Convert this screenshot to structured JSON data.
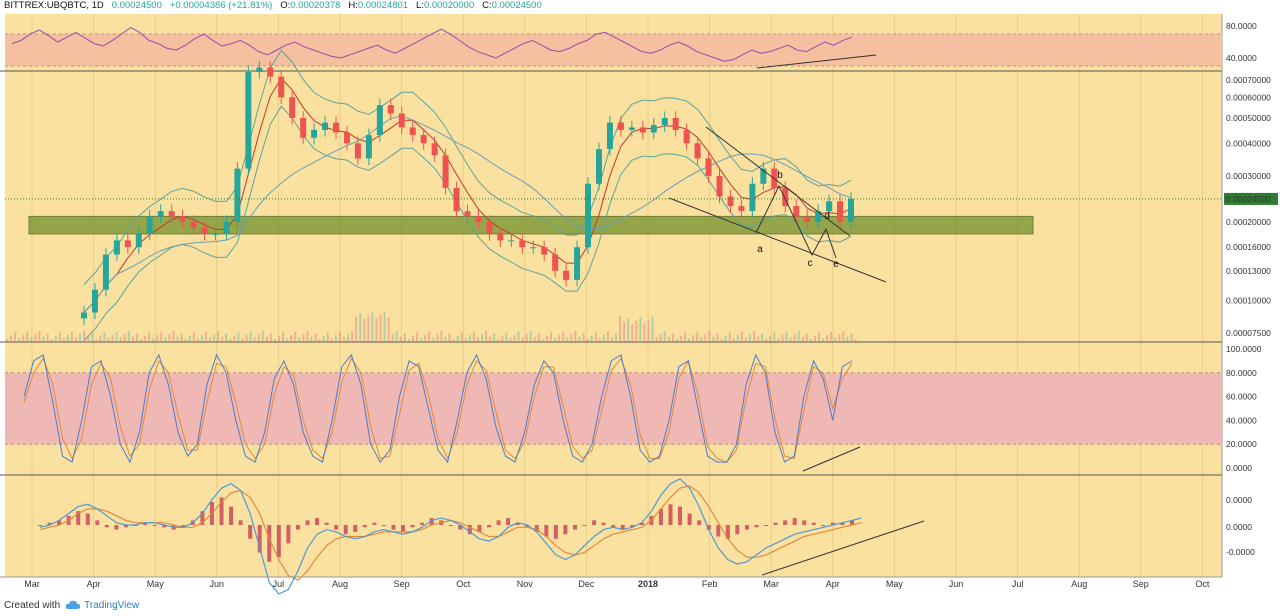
{
  "header": {
    "symbol": "BITTREX:UBQBTC, 1D",
    "close": "0.00024500",
    "change": "+0.00004386 (+21.81%)",
    "open_label": "O:",
    "open": "0.00020378",
    "high_label": "H:",
    "high": "0.00024801",
    "low_label": "L:",
    "low": "0.00020000",
    "close_label": "C:",
    "close2": "0.00024500"
  },
  "footer": {
    "created_with": "Created with",
    "brand": "TradingView"
  },
  "colors": {
    "background": "#fbe1a0",
    "up_candle": "#26a69a",
    "down_candle": "#ef5350",
    "rsi_band": "#f4c0a0",
    "stoch_band": "#efb8b4",
    "support_zone": "#6f8f2a",
    "price_tag": "#2e7d32"
  },
  "chart_data": [
    {
      "type": "line",
      "panel": "rsi",
      "yaxis_ticks": [
        "80.0000",
        "40.0000"
      ],
      "ylim": [
        25,
        95
      ],
      "band": [
        30,
        70
      ],
      "series": [
        {
          "values": [
            58,
            62,
            70,
            75,
            68,
            60,
            66,
            72,
            65,
            58,
            55,
            62,
            70,
            78,
            72,
            62,
            58,
            52,
            50,
            56,
            64,
            70,
            62,
            55,
            58,
            62,
            56,
            48,
            44,
            50,
            56,
            60,
            54,
            50,
            46,
            42,
            40,
            44,
            48,
            52,
            56,
            50,
            46,
            52,
            58,
            64,
            70,
            76,
            70,
            62,
            54,
            48,
            44,
            40,
            46,
            52,
            58,
            62,
            56,
            50,
            48,
            52,
            58,
            62,
            70,
            72,
            66,
            60,
            54,
            48,
            46,
            50,
            56,
            60,
            55,
            48,
            44,
            40,
            36,
            38,
            44,
            50,
            46,
            48,
            52,
            56,
            50,
            48,
            54,
            60,
            56,
            62,
            66
          ]
        }
      ],
      "trendline": [
        [
          58,
          0.0
        ],
        [
          92,
          1.0
        ]
      ]
    },
    {
      "type": "candlestick",
      "panel": "price",
      "x_tick_labels": [
        "Mar",
        "Apr",
        "May",
        "Jun",
        "Jul",
        "Aug",
        "Sep",
        "Oct",
        "Nov",
        "Dec",
        "2018",
        "Feb",
        "Mar",
        "Apr",
        "May",
        "Jun",
        "Jul",
        "Aug",
        "Sep",
        "Oct"
      ],
      "yaxis_ticks": [
        "0.00070000",
        "0.00060000",
        "0.00050000",
        "0.00040000",
        "0.00030000",
        "0.00020000",
        "0.00016000",
        "0.00013000",
        "0.00010000",
        "0.00007500"
      ],
      "y_scale": "log",
      "ylim": [
        7e-05,
        0.00075
      ],
      "last_price": "0.00024500",
      "close_series": [
        9e-05,
        0.00011,
        0.00015,
        0.00017,
        0.00016,
        0.00018,
        0.00021,
        0.00022,
        0.00021,
        0.0002,
        0.00019,
        0.00018,
        0.00018,
        0.0002,
        0.00032,
        0.00075,
        0.00078,
        0.00072,
        0.0006,
        0.0005,
        0.00042,
        0.00045,
        0.00048,
        0.00044,
        0.0004,
        0.00035,
        0.00043,
        0.00056,
        0.00052,
        0.00046,
        0.00043,
        0.0004,
        0.00036,
        0.00027,
        0.00022,
        0.00021,
        0.0002,
        0.00018,
        0.00017,
        0.00017,
        0.00016,
        0.00016,
        0.00015,
        0.00013,
        0.00012,
        0.00016,
        0.00028,
        0.00038,
        0.00048,
        0.00045,
        0.00046,
        0.00044,
        0.00047,
        0.0005,
        0.00045,
        0.0004,
        0.00035,
        0.0003,
        0.00025,
        0.00023,
        0.00022,
        0.00028,
        0.00032,
        0.00027,
        0.00023,
        0.00021,
        0.0002,
        0.00022,
        0.00024,
        0.0002,
        0.000245
      ],
      "support_zone": [
        0.00018,
        0.00021
      ],
      "wave_labels": [
        "a",
        "b",
        "c",
        "d",
        "e"
      ]
    },
    {
      "type": "line",
      "panel": "stoch_rsi",
      "yaxis_ticks": [
        "100.0000",
        "80.0000",
        "60.0000",
        "40.0000",
        "20.0000",
        "0.0000"
      ],
      "ylim": [
        -5,
        105
      ],
      "band": [
        20,
        80
      ],
      "series": [
        {
          "values": [
            60,
            90,
            95,
            55,
            10,
            5,
            40,
            85,
            90,
            60,
            20,
            5,
            30,
            80,
            95,
            70,
            30,
            10,
            20,
            70,
            95,
            80,
            40,
            10,
            5,
            30,
            75,
            90,
            70,
            30,
            10,
            5,
            40,
            85,
            95,
            70,
            20,
            5,
            15,
            60,
            90,
            85,
            50,
            15,
            5,
            40,
            80,
            95,
            75,
            35,
            10,
            5,
            30,
            70,
            90,
            80,
            40,
            10,
            5,
            20,
            60,
            90,
            95,
            60,
            15,
            5,
            10,
            40,
            85,
            90,
            50,
            10,
            5,
            5,
            20,
            70,
            95,
            80,
            30,
            5,
            10,
            60,
            90,
            75,
            40,
            85,
            90
          ]
        },
        {
          "values": [
            55,
            80,
            92,
            70,
            25,
            8,
            25,
            70,
            88,
            75,
            35,
            10,
            20,
            65,
            90,
            80,
            45,
            15,
            15,
            55,
            88,
            85,
            55,
            20,
            8,
            20,
            62,
            85,
            78,
            40,
            15,
            8,
            30,
            72,
            92,
            80,
            35,
            8,
            10,
            45,
            82,
            88,
            62,
            25,
            8,
            30,
            70,
            90,
            82,
            48,
            15,
            8,
            22,
            60,
            85,
            85,
            52,
            18,
            8,
            15,
            48,
            82,
            92,
            70,
            28,
            8,
            8,
            30,
            75,
            90,
            62,
            18,
            8,
            5,
            15,
            58,
            88,
            85,
            42,
            10,
            8,
            48,
            85,
            80,
            50,
            75,
            88
          ]
        }
      ],
      "trendline": [
        [
          0.62,
          8
        ],
        [
          0.67,
          22
        ]
      ]
    },
    {
      "type": "line",
      "panel": "macd",
      "yaxis_ticks": [
        "0.0000",
        "0.0000",
        "-0.0000"
      ],
      "histogram": [
        0,
        1,
        2,
        4,
        6,
        5,
        2,
        -1,
        -2,
        -1,
        0,
        1,
        0,
        -1,
        -2,
        -1,
        2,
        6,
        10,
        12,
        8,
        2,
        -6,
        -12,
        -16,
        -14,
        -8,
        -2,
        2,
        3,
        1,
        -2,
        -4,
        -3,
        -1,
        1,
        0,
        -2,
        -3,
        -1,
        1,
        3,
        2,
        0,
        -2,
        -4,
        -3,
        -1,
        2,
        3,
        1,
        -1,
        -3,
        -5,
        -6,
        -4,
        -2,
        0,
        2,
        1,
        -1,
        -2,
        -1,
        1,
        4,
        7,
        9,
        8,
        5,
        2,
        -2,
        -5,
        -6,
        -4,
        -2,
        -1,
        0,
        1,
        2,
        3,
        2,
        1,
        0,
        1,
        1,
        2
      ],
      "series": [
        {
          "name": "",
          "values": [
            -1,
            0,
            2,
            5,
            8,
            9,
            7,
            4,
            1,
            0,
            0,
            1,
            1,
            0,
            -1,
            -1,
            1,
            5,
            11,
            16,
            18,
            15,
            5,
            -10,
            -25,
            -30,
            -28,
            -20,
            -10,
            -4,
            -2,
            -3,
            -5,
            -6,
            -5,
            -3,
            -2,
            -3,
            -4,
            -3,
            -1,
            2,
            3,
            2,
            0,
            -3,
            -6,
            -7,
            -5,
            -1,
            1,
            0,
            -3,
            -8,
            -13,
            -15,
            -13,
            -9,
            -5,
            -2,
            -1,
            -2,
            -1,
            1,
            6,
            13,
            18,
            20,
            16,
            8,
            -2,
            -10,
            -15,
            -17,
            -16,
            -13,
            -10,
            -8,
            -6,
            -4,
            -3,
            -2,
            -1,
            0,
            1,
            2,
            3
          ]
        },
        {
          "name": "",
          "values": [
            -2,
            -1,
            0,
            2,
            5,
            7,
            7,
            6,
            4,
            2,
            1,
            1,
            1,
            1,
            0,
            -1,
            -1,
            1,
            5,
            10,
            14,
            15,
            12,
            5,
            -6,
            -15,
            -22,
            -24,
            -20,
            -14,
            -9,
            -6,
            -5,
            -5,
            -5,
            -4,
            -3,
            -3,
            -3,
            -3,
            -2,
            0,
            1,
            2,
            1,
            -1,
            -3,
            -5,
            -5,
            -3,
            -1,
            -1,
            -2,
            -5,
            -9,
            -12,
            -13,
            -12,
            -9,
            -6,
            -4,
            -3,
            -2,
            -1,
            2,
            7,
            12,
            16,
            17,
            14,
            8,
            1,
            -6,
            -11,
            -14,
            -14,
            -13,
            -11,
            -9,
            -7,
            -5,
            -4,
            -3,
            -2,
            -1,
            0,
            1
          ]
        }
      ],
      "trendline": [
        [
          0.61,
          -18
        ],
        [
          0.73,
          2
        ]
      ]
    }
  ]
}
